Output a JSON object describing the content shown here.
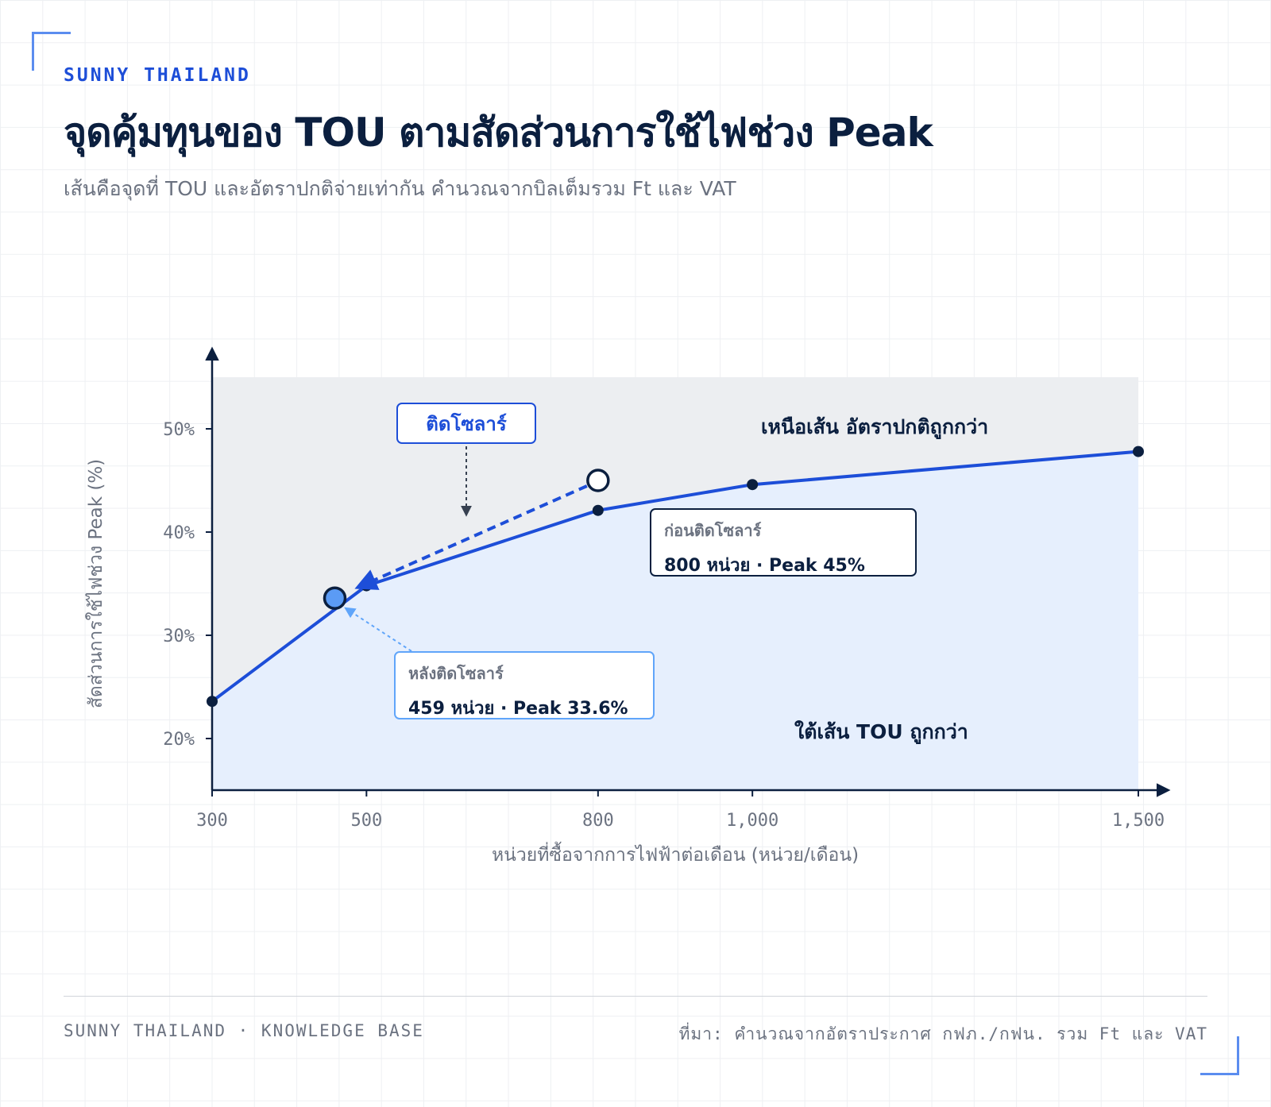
{
  "brand": "SUNNY THAILAND",
  "title": "จุดคุ้มทุนของ TOU ตามสัดส่วนการใช้ไฟช่วง Peak",
  "subtitle": "เส้นคือจุดที่ TOU และอัตราปกติจ่ายเท่ากัน คำนวณจากบิลเต็มรวม Ft และ VAT",
  "footer": {
    "left": "SUNNY THAILAND · KNOWLEDGE BASE",
    "right": "ที่มา: คำนวณจากอัตราประกาศ กฟภ./กฟน. รวม Ft และ VAT"
  },
  "chart_data": {
    "type": "line",
    "xlabel": "หน่วยที่ซื้อจากการไฟฟ้าต่อเดือน (หน่วย/เดือน)",
    "ylabel": "สัดส่วนการใช้ไฟช่วง Peak (%)",
    "xlim": [
      300,
      1500
    ],
    "ylim": [
      15,
      55
    ],
    "x_ticks": [
      300,
      500,
      800,
      1000,
      1500
    ],
    "x_tick_labels": [
      "300",
      "500",
      "800",
      "1,000",
      "1,500"
    ],
    "y_ticks": [
      20,
      30,
      40,
      50
    ],
    "y_tick_labels": [
      "20%",
      "30%",
      "40%",
      "50%"
    ],
    "series": [
      {
        "x": [
          300,
          500,
          800,
          1000,
          1500
        ],
        "y": [
          23.6,
          34.8,
          42.1,
          44.6,
          47.8
        ],
        "color": "#1d4ed8"
      }
    ],
    "points": {
      "before": {
        "x": 800,
        "y": 45
      },
      "after": {
        "x": 459,
        "y": 33.6
      }
    },
    "regions": {
      "above_label": "เหนือเส้น อัตราปกติถูกกว่า",
      "below_label": "ใต้เส้น TOU ถูกกว่า"
    },
    "annotations": {
      "before_title": "ก่อนติดโซลาร์",
      "before_value": "800 หน่วย · Peak 45%",
      "after_title": "หลังติดโซลาร์",
      "after_value": "459 หน่วย · Peak 33.6%",
      "solar_label": "ติดโซลาร์"
    },
    "colors": {
      "above_fill": "#eceef1",
      "below_fill": "#e6effd",
      "line": "#1d4ed8",
      "after_point": "#5b9bf5",
      "axis": "#0b1f3f"
    }
  }
}
